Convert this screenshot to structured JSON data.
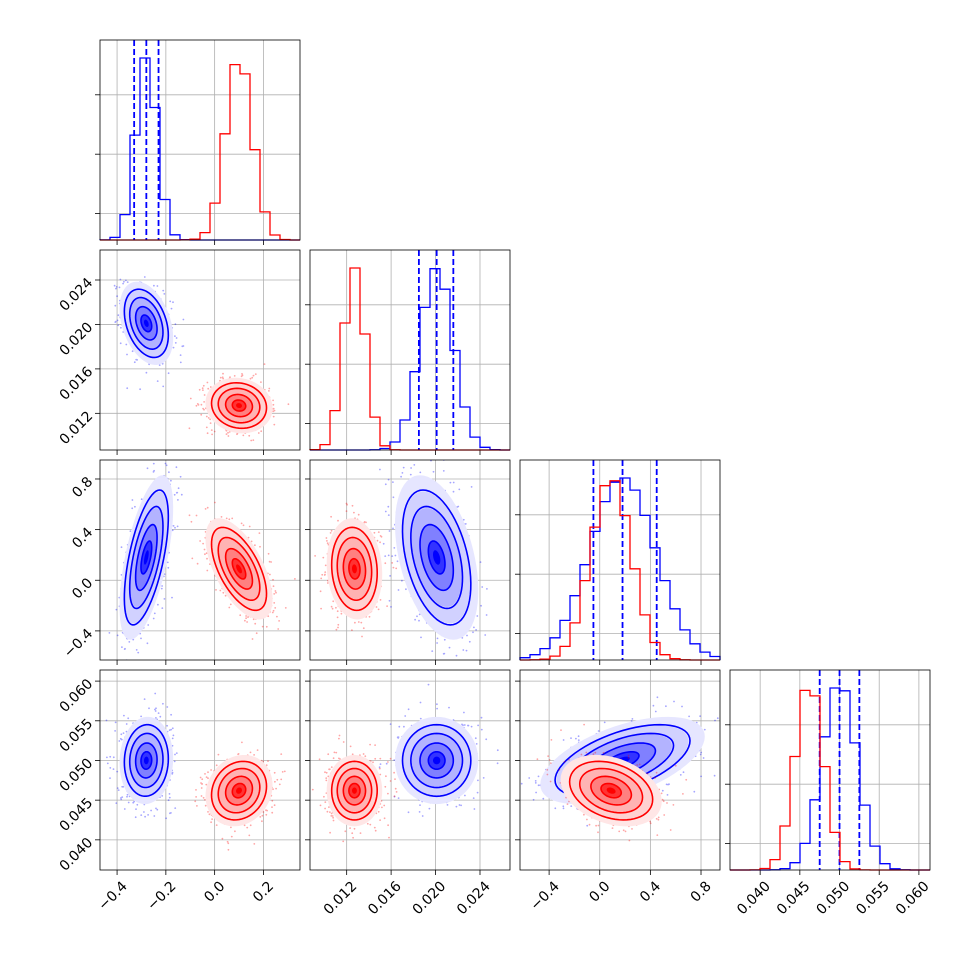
{
  "chart_data": {
    "type": "corner",
    "colors": {
      "blue": "#0000ff",
      "red": "#ff0000"
    },
    "grid": true,
    "parameters": [
      {
        "ticks": [
          -0.4,
          -0.2,
          0.0,
          0.2
        ],
        "tick_labels": [
          "−0.4",
          "−0.2",
          "0.0",
          "0.2"
        ],
        "range": [
          -0.47,
          0.35
        ]
      },
      {
        "ticks": [
          0.012,
          0.016,
          0.02,
          0.024
        ],
        "tick_labels": [
          "0.012",
          "0.016",
          "0.020",
          "0.024"
        ],
        "range": [
          0.0087,
          0.0267
        ]
      },
      {
        "ticks": [
          -0.4,
          0.0,
          0.4,
          0.8
        ],
        "tick_labels": [
          "−0.4",
          "0.0",
          "0.4",
          "0.8"
        ],
        "range": [
          -0.63,
          0.95
        ]
      },
      {
        "ticks": [
          0.04,
          0.045,
          0.05,
          0.055,
          0.06
        ],
        "tick_labels": [
          "0.040",
          "0.045",
          "0.050",
          "0.055",
          "0.060"
        ],
        "range": [
          0.0362,
          0.0614
        ]
      }
    ],
    "series": [
      {
        "name": "",
        "color": "#0000ff",
        "means": [
          -0.28,
          0.0201,
          0.18,
          0.05
        ],
        "sds": [
          0.044,
          0.0015,
          0.26,
          0.0022
        ],
        "quantiles": [
          [
            -0.33,
            -0.28,
            -0.23
          ],
          [
            0.0185,
            0.0201,
            0.0216
          ],
          [
            -0.05,
            0.18,
            0.45
          ],
          [
            0.0475,
            0.05,
            0.0525
          ]
        ],
        "correlations": {
          "0-1": -0.35,
          "0-2": 0.6,
          "0-3": 0.05,
          "1-2": -0.4,
          "1-3": 0.0,
          "2-3": 0.55
        }
      },
      {
        "name": "",
        "color": "#ff0000",
        "means": [
          0.1,
          0.0127,
          0.09,
          0.0462
        ],
        "sds": [
          0.055,
          0.001,
          0.16,
          0.0018
        ],
        "correlations": {
          "0-1": -0.1,
          "0-2": -0.6,
          "0-3": 0.15,
          "1-2": -0.1,
          "1-3": 0.0,
          "2-3": -0.3
        }
      }
    ]
  }
}
